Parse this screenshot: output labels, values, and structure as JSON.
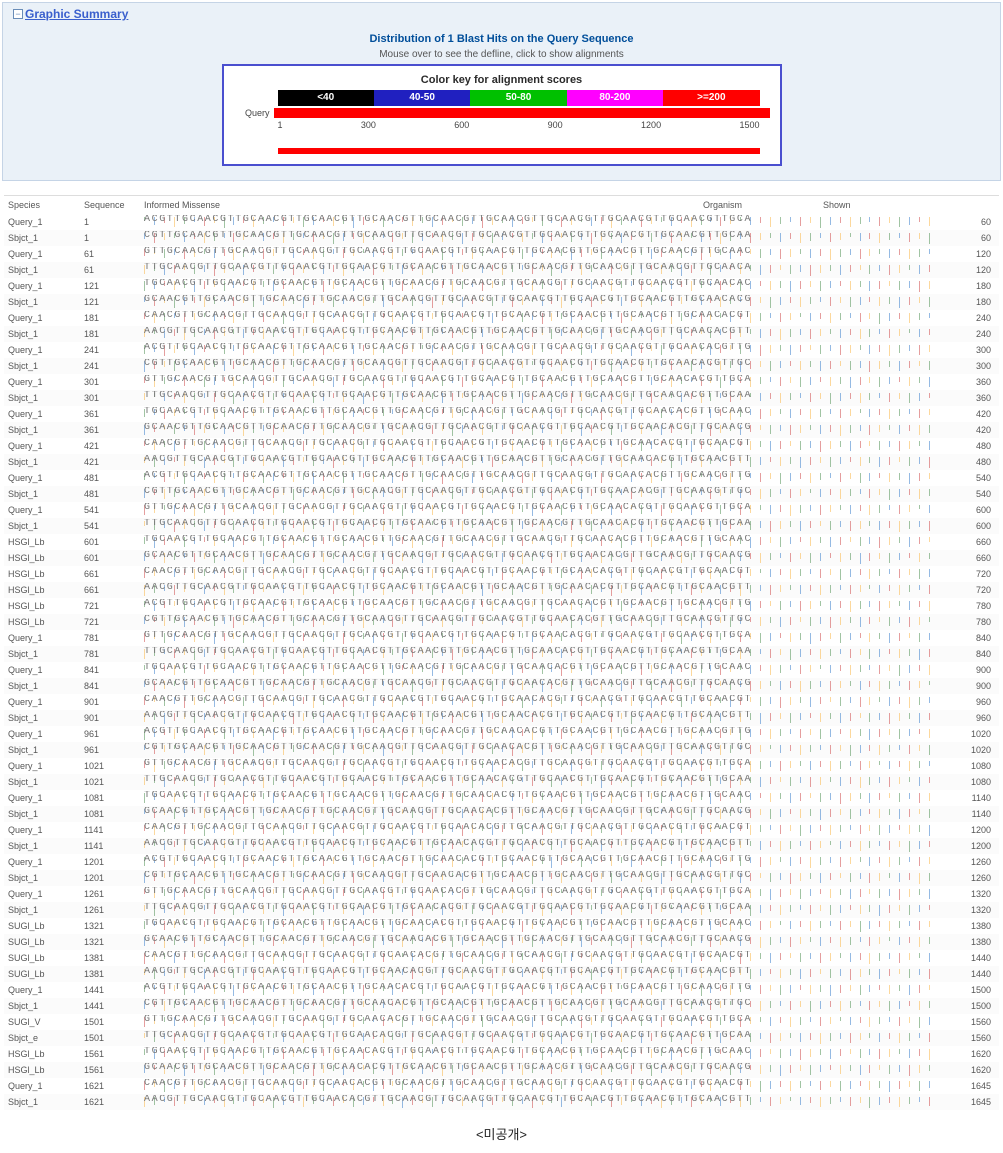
{
  "panel": {
    "toggle_glyph": "−",
    "title": "Graphic Summary"
  },
  "distribution": {
    "title": "Distribution of 1 Blast Hits on the Query Sequence",
    "hint": "Mouse over to see the defline, click to show alignments",
    "key_title": "Color key for alignment scores",
    "bins": [
      {
        "label": "<40",
        "color": "#000000"
      },
      {
        "label": "40-50",
        "color": "#2020c0"
      },
      {
        "label": "50-80",
        "color": "#00c000"
      },
      {
        "label": "80-200",
        "color": "#ff00ff"
      },
      {
        "label": ">=200",
        "color": "#ff0000"
      }
    ],
    "query_label": "Query",
    "query_color": "#ff0000",
    "ticks": [
      "1",
      "300",
      "600",
      "900",
      "1200",
      "1500"
    ],
    "hit_color": "#ff0000"
  },
  "alignment": {
    "headers": {
      "species": "Species",
      "identity": "Organism",
      "position": "Sequence",
      "info_standard": "Informed Missense",
      "organism": "Organism",
      "shown": "Shown"
    },
    "trace_colors": [
      "#2e7d32",
      "#1565c0",
      "#c62828",
      "#f9a825"
    ],
    "rows": [
      {
        "name": "Query_1",
        "start": "1",
        "end": "60"
      },
      {
        "name": "Sbjct_1",
        "start": "1",
        "end": "60"
      },
      {
        "name": "Query_1",
        "start": "61",
        "end": "120"
      },
      {
        "name": "Sbjct_1",
        "start": "61",
        "end": "120"
      },
      {
        "name": "Query_1",
        "start": "121",
        "end": "180"
      },
      {
        "name": "Sbjct_1",
        "start": "121",
        "end": "180"
      },
      {
        "name": "Query_1",
        "start": "181",
        "end": "240"
      },
      {
        "name": "Sbjct_1",
        "start": "181",
        "end": "240"
      },
      {
        "name": "Query_1",
        "start": "241",
        "end": "300"
      },
      {
        "name": "Sbjct_1",
        "start": "241",
        "end": "300"
      },
      {
        "name": "Query_1",
        "start": "301",
        "end": "360"
      },
      {
        "name": "Sbjct_1",
        "start": "301",
        "end": "360"
      },
      {
        "name": "Query_1",
        "start": "361",
        "end": "420"
      },
      {
        "name": "Sbjct_1",
        "start": "361",
        "end": "420"
      },
      {
        "name": "Query_1",
        "start": "421",
        "end": "480"
      },
      {
        "name": "Sbjct_1",
        "start": "421",
        "end": "480"
      },
      {
        "name": "Query_1",
        "start": "481",
        "end": "540"
      },
      {
        "name": "Sbjct_1",
        "start": "481",
        "end": "540"
      },
      {
        "name": "Query_1",
        "start": "541",
        "end": "600"
      },
      {
        "name": "Sbjct_1",
        "start": "541",
        "end": "600"
      },
      {
        "name": "HSGl_Lb",
        "start": "601",
        "end": "660"
      },
      {
        "name": "HSGl_Lb",
        "start": "601",
        "end": "660"
      },
      {
        "name": "HSGl_Lb",
        "start": "661",
        "end": "720"
      },
      {
        "name": "HSGl_Lb",
        "start": "661",
        "end": "720"
      },
      {
        "name": "HSGl_Lb",
        "start": "721",
        "end": "780"
      },
      {
        "name": "HSGl_Lb",
        "start": "721",
        "end": "780"
      },
      {
        "name": "Query_1",
        "start": "781",
        "end": "840"
      },
      {
        "name": "Sbjct_1",
        "start": "781",
        "end": "840"
      },
      {
        "name": "Query_1",
        "start": "841",
        "end": "900"
      },
      {
        "name": "Sbjct_1",
        "start": "841",
        "end": "900"
      },
      {
        "name": "Query_1",
        "start": "901",
        "end": "960"
      },
      {
        "name": "Sbjct_1",
        "start": "901",
        "end": "960"
      },
      {
        "name": "Query_1",
        "start": "961",
        "end": "1020"
      },
      {
        "name": "Sbjct_1",
        "start": "961",
        "end": "1020"
      },
      {
        "name": "Query_1",
        "start": "1021",
        "end": "1080"
      },
      {
        "name": "Sbjct_1",
        "start": "1021",
        "end": "1080"
      },
      {
        "name": "Query_1",
        "start": "1081",
        "end": "1140"
      },
      {
        "name": "Sbjct_1",
        "start": "1081",
        "end": "1140"
      },
      {
        "name": "Query_1",
        "start": "1141",
        "end": "1200"
      },
      {
        "name": "Sbjct_1",
        "start": "1141",
        "end": "1200"
      },
      {
        "name": "Query_1",
        "start": "1201",
        "end": "1260"
      },
      {
        "name": "Sbjct_1",
        "start": "1201",
        "end": "1260"
      },
      {
        "name": "Query_1",
        "start": "1261",
        "end": "1320"
      },
      {
        "name": "Sbjct_1",
        "start": "1261",
        "end": "1320"
      },
      {
        "name": "SUGl_Lb",
        "start": "1321",
        "end": "1380"
      },
      {
        "name": "SUGl_Lb",
        "start": "1321",
        "end": "1380"
      },
      {
        "name": "SUGl_Lb",
        "start": "1381",
        "end": "1440"
      },
      {
        "name": "SUGl_Lb",
        "start": "1381",
        "end": "1440"
      },
      {
        "name": "Query_1",
        "start": "1441",
        "end": "1500"
      },
      {
        "name": "Sbjct_1",
        "start": "1441",
        "end": "1500"
      },
      {
        "name": "SUGl_V",
        "start": "1501",
        "end": "1560"
      },
      {
        "name": "Sbjct_e",
        "start": "1501",
        "end": "1560"
      },
      {
        "name": "HSGl_Lb",
        "start": "1561",
        "end": "1620"
      },
      {
        "name": "HSGl_Lb",
        "start": "1561",
        "end": "1620"
      },
      {
        "name": "Query_1",
        "start": "1621",
        "end": "1645"
      },
      {
        "name": "Sbjct_1",
        "start": "1621",
        "end": "1645"
      }
    ],
    "pattern_seed": "ACGTTGCAACGTTGCAACGTTGCAACGTTGCAACGTTGCAACGTTGCAACGTTGCAACGTTGCAACGTTGCAACGTTGCAAC"
  },
  "caption": "<미공개>"
}
